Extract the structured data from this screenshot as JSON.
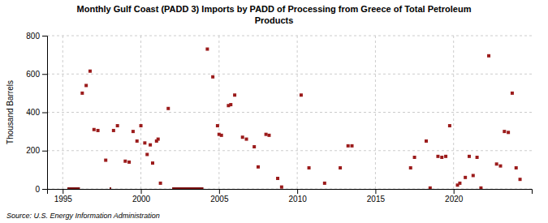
{
  "chart_data": {
    "type": "scatter",
    "title": "Monthly Gulf Coast (PADD 3) Imports by PADD of Processing from Greece of Total Petroleum\nProducts",
    "y_label": "Thousand Barrels",
    "annotations": [
      "Source: U.S. Energy Information Administration"
    ],
    "xlim": [
      1994.0,
      2025.0
    ],
    "xticks": [
      1995,
      2000,
      2005,
      2010,
      2015,
      2020
    ],
    "ylim": [
      0,
      800
    ],
    "yticks": [
      0,
      200,
      400,
      600,
      800
    ],
    "grid": true,
    "series": [
      {
        "type": "line",
        "color": "#7a1010",
        "line_style": "solid",
        "x": [
          1995.3,
          1996.1,
          null,
          1998.0,
          1998.1,
          null,
          2002.0,
          2004.0
        ],
        "values": [
          0,
          0,
          null,
          0,
          0,
          null,
          0,
          0
        ]
      },
      {
        "type": "scatter",
        "marker": "square",
        "color": "#9b1b1b",
        "x": [
          1996.25,
          1996.5,
          1996.75,
          1997.0,
          1997.25,
          1997.75,
          1998.25,
          1998.5,
          1999.0,
          1999.25,
          1999.5,
          1999.75,
          2000.0,
          2000.25,
          2000.4,
          2000.6,
          2000.75,
          2001.0,
          2001.1,
          2001.25,
          2001.75,
          2004.25,
          2004.6,
          2004.9,
          2005.0,
          2005.15,
          2005.6,
          2005.75,
          2006.0,
          2006.5,
          2006.75,
          2007.25,
          2007.5,
          2008.0,
          2008.2,
          2008.75,
          2009.0,
          2010.25,
          2010.75,
          2011.75,
          2012.75,
          2013.25,
          2013.5,
          2017.25,
          2017.5,
          2018.25,
          2019.0,
          2019.25,
          2019.5,
          2019.75,
          2020.25,
          2020.4,
          2020.75,
          2021.0,
          2021.25,
          2021.5,
          2022.25,
          2022.75,
          2023.0,
          2023.25,
          2023.5,
          2023.75,
          2024.0,
          2024.25
        ],
        "values": [
          500,
          540,
          615,
          310,
          305,
          150,
          305,
          330,
          145,
          140,
          300,
          250,
          330,
          240,
          180,
          230,
          135,
          250,
          260,
          30,
          420,
          730,
          585,
          330,
          285,
          280,
          435,
          440,
          490,
          270,
          260,
          220,
          115,
          285,
          280,
          55,
          10,
          490,
          110,
          30,
          110,
          225,
          225,
          110,
          165,
          250,
          170,
          165,
          170,
          330,
          20,
          30,
          60,
          170,
          70,
          165,
          695,
          130,
          120,
          300,
          295,
          500,
          110,
          50
        ]
      },
      {
        "type": "scatter",
        "marker": "square",
        "color": "#9b1b1b",
        "x": [
          2018.5,
          2021.75
        ],
        "values": [
          5,
          5
        ]
      }
    ]
  }
}
